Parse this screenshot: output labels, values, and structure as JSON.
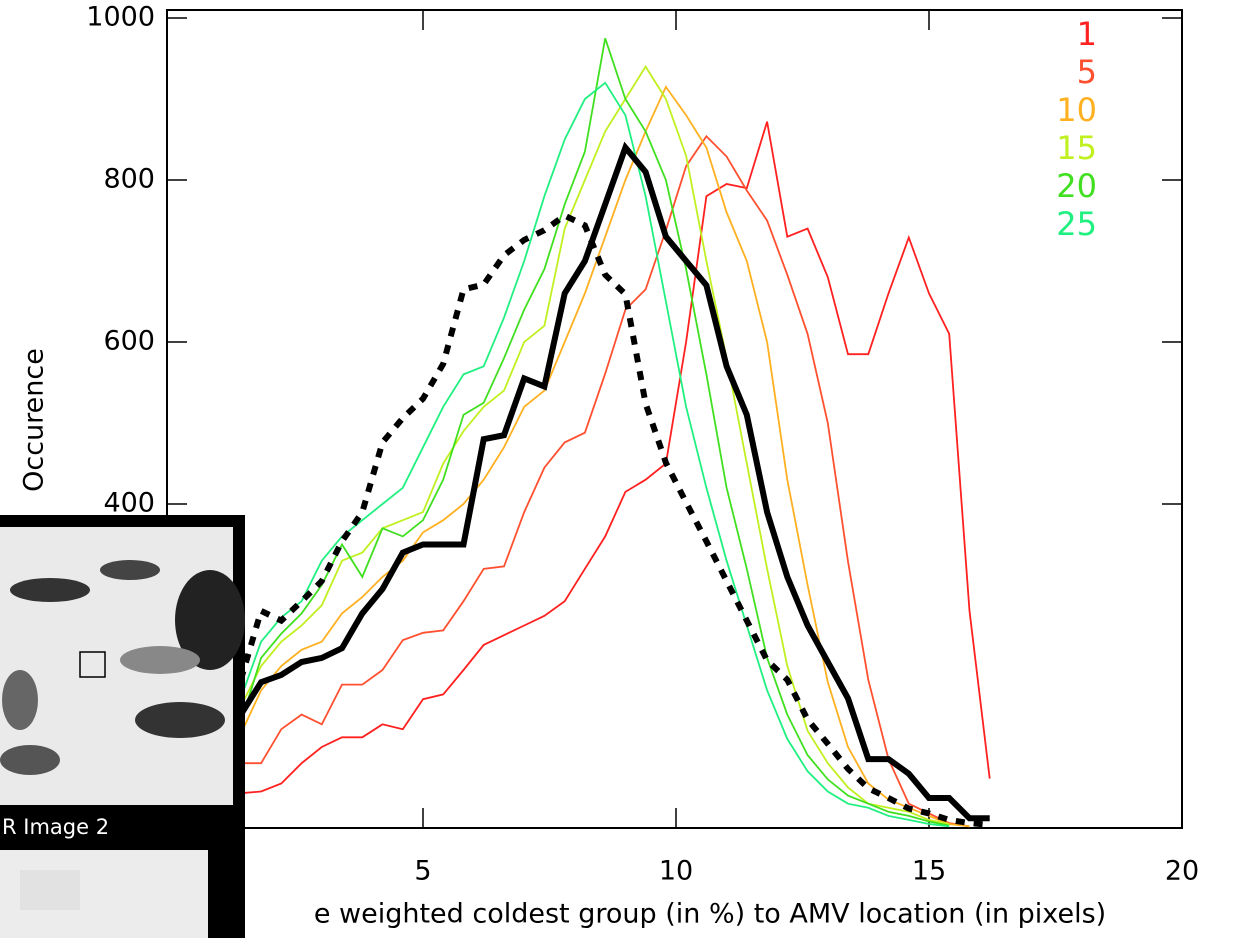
{
  "chart_data": {
    "type": "line",
    "x_label": "e weighted coldest group (in %) to AMV location (in pixels)",
    "y_label": "Occurence",
    "xlim": [
      0,
      20
    ],
    "ylim": [
      0,
      1000
    ],
    "xticks": [
      5,
      10,
      15,
      20
    ],
    "yticks": [
      400,
      600,
      800,
      1000
    ],
    "legend_position": "upper right",
    "x": [
      1.4,
      1.8,
      2.2,
      2.6,
      3.0,
      3.4,
      3.8,
      4.2,
      4.6,
      5.0,
      5.4,
      5.8,
      6.2,
      6.6,
      7.0,
      7.4,
      7.8,
      8.2,
      8.6,
      9.0,
      9.4,
      9.8,
      10.2,
      10.6,
      11.0,
      11.4,
      11.8,
      12.2,
      12.6,
      13.0,
      13.4,
      13.8,
      14.2,
      14.6,
      15.0,
      15.4,
      15.8,
      16.2
    ],
    "series": [
      {
        "name": "1",
        "color": "#ff2020",
        "linestyle": "solid",
        "bold": false,
        "values": [
          43,
          45,
          55,
          80,
          100,
          112,
          112,
          128,
          122,
          159,
          165,
          195,
          226,
          238,
          250,
          262,
          280,
          320,
          360,
          415,
          430,
          450,
          600,
          780,
          795,
          790,
          872,
          730,
          740,
          680,
          585,
          585,
          660,
          729,
          660,
          610,
          268,
          61
        ]
      },
      {
        "name": "5",
        "color": "#ff5030",
        "linestyle": "solid",
        "bold": false,
        "values": [
          80,
          80,
          122,
          140,
          128,
          177,
          177,
          195,
          232,
          241,
          244,
          280,
          320,
          323,
          390,
          445,
          476,
          488,
          561,
          640,
          665,
          738,
          817,
          854,
          829,
          787,
          750,
          683,
          610,
          500,
          329,
          183,
          85,
          30,
          18,
          6,
          2,
          null
        ]
      },
      {
        "name": "10",
        "color": "#ffb020",
        "linestyle": "solid",
        "bold": false,
        "values": [
          116,
          170,
          200,
          220,
          230,
          265,
          285,
          310,
          330,
          365,
          380,
          400,
          430,
          470,
          520,
          540,
          600,
          660,
          730,
          800,
          860,
          915,
          880,
          840,
          760,
          700,
          600,
          430,
          300,
          180,
          100,
          55,
          35,
          25,
          15,
          5,
          2,
          null
        ]
      },
      {
        "name": "15",
        "color": "#c0f020",
        "linestyle": "solid",
        "bold": false,
        "values": [
          150,
          200,
          230,
          250,
          275,
          330,
          340,
          370,
          380,
          390,
          450,
          490,
          520,
          540,
          600,
          620,
          740,
          800,
          860,
          900,
          940,
          900,
          830,
          700,
          580,
          450,
          320,
          200,
          120,
          80,
          50,
          30,
          25,
          20,
          10,
          5,
          null,
          null
        ]
      },
      {
        "name": "20",
        "color": "#40e020",
        "linestyle": "solid",
        "bold": false,
        "values": [
          130,
          210,
          240,
          265,
          300,
          350,
          310,
          370,
          360,
          380,
          430,
          510,
          525,
          580,
          640,
          690,
          770,
          835,
          975,
          900,
          860,
          800,
          690,
          560,
          420,
          320,
          210,
          140,
          90,
          60,
          40,
          30,
          20,
          15,
          8,
          3,
          null,
          null
        ]
      },
      {
        "name": "25",
        "color": "#20f080",
        "linestyle": "solid",
        "bold": false,
        "values": [
          160,
          230,
          260,
          280,
          330,
          360,
          380,
          400,
          420,
          470,
          520,
          560,
          570,
          630,
          700,
          780,
          850,
          900,
          920,
          880,
          780,
          650,
          520,
          420,
          330,
          250,
          170,
          110,
          70,
          45,
          30,
          25,
          15,
          10,
          5,
          2,
          null,
          null
        ]
      },
      {
        "color": "#000000",
        "linestyle": "solid",
        "bold": true,
        "values": [
          140,
          180,
          189,
          205,
          210,
          222,
          265,
          295,
          340,
          350,
          350,
          350,
          480,
          485,
          555,
          545,
          660,
          700,
          770,
          840,
          810,
          730,
          700,
          670,
          570,
          510,
          390,
          310,
          250,
          205,
          160,
          85,
          85,
          67,
          37,
          37,
          12,
          12
        ]
      },
      {
        "color": "#000000",
        "linestyle": "dotted",
        "bold": true,
        "values": [
          183,
          268,
          256,
          280,
          305,
          354,
          390,
          476,
          506,
          530,
          573,
          665,
          671,
          707,
          726,
          738,
          756,
          744,
          683,
          659,
          524,
          451,
          402,
          354,
          305,
          256,
          207,
          183,
          134,
          104,
          73,
          49,
          37,
          24,
          18,
          10,
          6,
          4
        ]
      }
    ]
  },
  "overlay_window": {
    "caption": "R Image 2"
  }
}
